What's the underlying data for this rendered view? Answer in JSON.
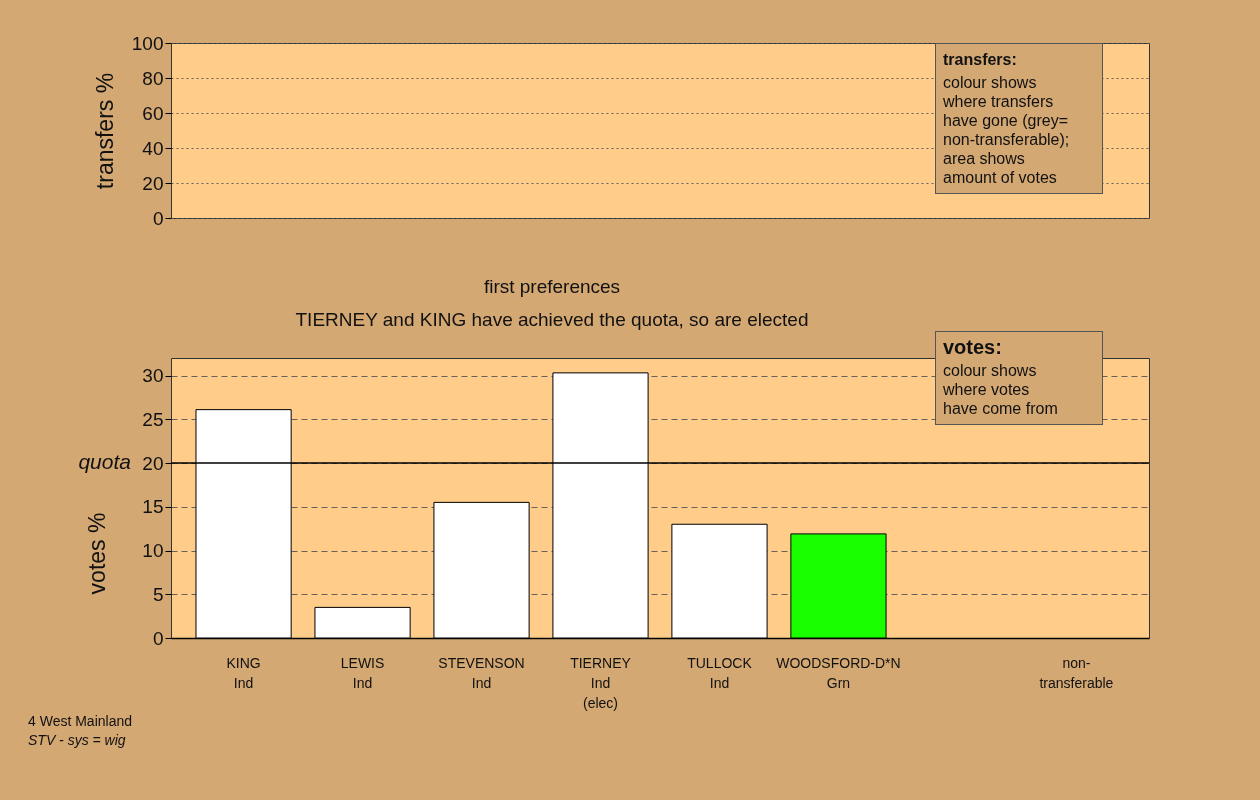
{
  "chart_data": [
    {
      "type": "bar",
      "ylabel": "transfers %",
      "categories": [
        null,
        null,
        null,
        null,
        null,
        null,
        null,
        null
      ],
      "values": [
        null,
        null,
        null,
        null,
        null,
        null,
        null,
        null
      ],
      "ylim": [
        0,
        100
      ],
      "yticks": [
        0,
        20,
        40,
        60,
        80,
        100
      ],
      "grid": true,
      "tick_labels": "y",
      "annotations": [
        "transfers:\ncolour shows\nwhere transfers\nhave gone (grey=\nnon-transferable);\narea shows\namount of votes"
      ]
    },
    {
      "type": "bar",
      "title": "first preferences",
      "subtitle": "TIERNEY and KING have achieved the quota, so are elected",
      "ylabel": "votes %",
      "categories": [
        "KING\nInd",
        "LEWIS\nInd",
        "STEVENSON\nInd",
        "TIERNEY\nInd\n(elec)",
        "TULLOCK\nInd",
        "WOODSFORD-D*N\nGrn",
        null,
        "non-\ntransferable"
      ],
      "values": [
        26.1,
        3.5,
        15.5,
        30.3,
        13.0,
        11.9,
        null,
        null
      ],
      "colors": [
        "#ffffff",
        "#ffffff",
        "#ffffff",
        "#ffffff",
        "#ffffff",
        "#1aff00",
        null,
        null
      ],
      "ylim": [
        0,
        32
      ],
      "yticks": [
        0,
        5,
        10,
        15,
        20,
        25,
        30
      ],
      "grid": true,
      "ref_lines": [
        {
          "axis": "y",
          "value": 20,
          "label": "quota"
        }
      ],
      "annotations": [
        "votes:\ncolour shows\nwhere votes\nhave come from",
        "4 West Mainland",
        "STV - sys = wig"
      ]
    }
  ]
}
